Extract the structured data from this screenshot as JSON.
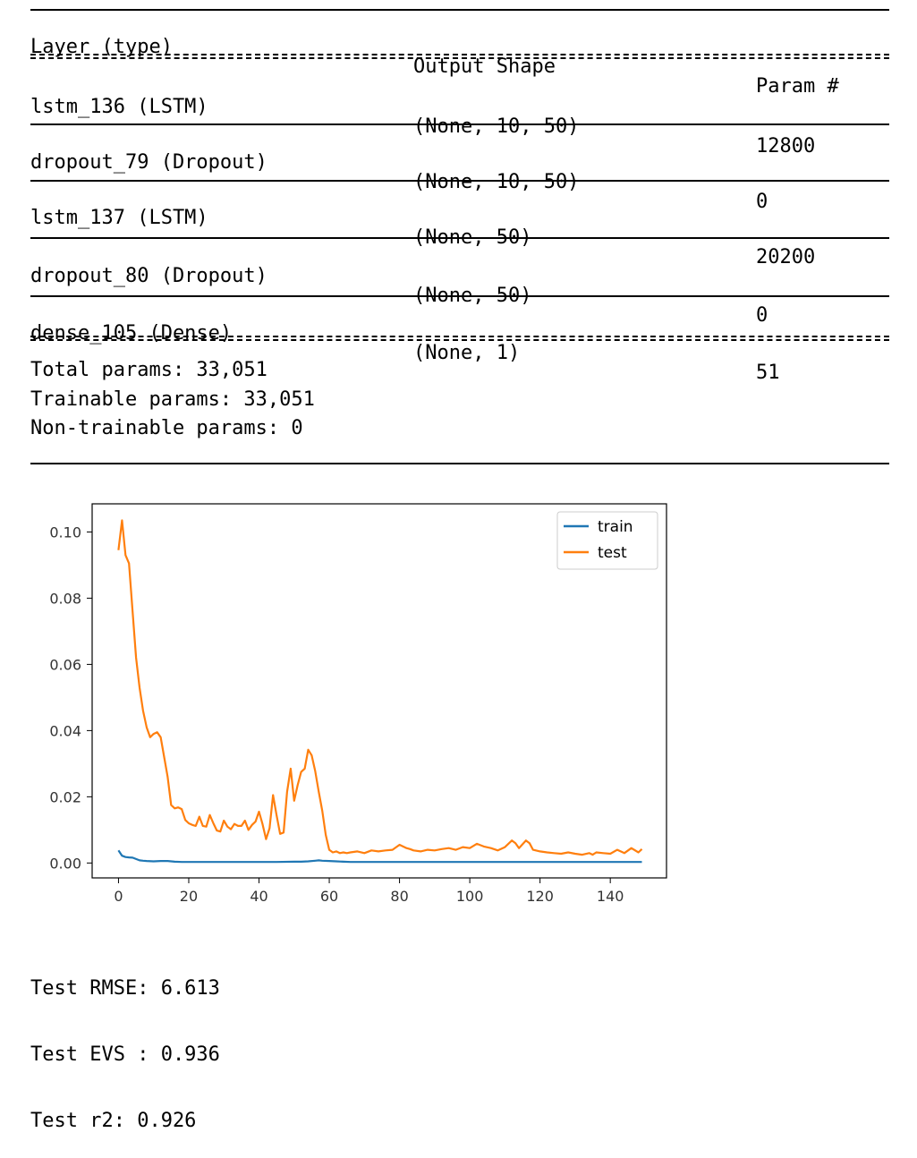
{
  "summary": {
    "headers": [
      "Layer (type)",
      "Output Shape",
      "Param #"
    ],
    "rows": [
      {
        "layer": "lstm_136 (LSTM)",
        "shape": "(None, 10, 50)",
        "params": "12800"
      },
      {
        "layer": "dropout_79 (Dropout)",
        "shape": "(None, 10, 50)",
        "params": "0"
      },
      {
        "layer": "lstm_137 (LSTM)",
        "shape": "(None, 50)",
        "params": "20200"
      },
      {
        "layer": "dropout_80 (Dropout)",
        "shape": "(None, 50)",
        "params": "0"
      },
      {
        "layer": "dense_105 (Dense)",
        "shape": "(None, 1)",
        "params": "51"
      }
    ],
    "total": "Total params: 33,051",
    "trainable": "Trainable params: 33,051",
    "non_trainable": "Non-trainable params: 0"
  },
  "chart_data": {
    "type": "line",
    "title": "",
    "xlabel": "",
    "ylabel": "",
    "xlim": [
      -7.5,
      156
    ],
    "ylim": [
      -0.0045,
      0.1085
    ],
    "x_ticks": [
      "0",
      "20",
      "40",
      "60",
      "80",
      "100",
      "120",
      "140"
    ],
    "y_ticks": [
      "0.00",
      "0.02",
      "0.04",
      "0.06",
      "0.08",
      "0.10"
    ],
    "legend": "top-right",
    "grid": false,
    "series": [
      {
        "name": "train",
        "color": "#1f77b4",
        "x": [
          0,
          1,
          2,
          3,
          4,
          5,
          6,
          7,
          8,
          10,
          12,
          14,
          16,
          18,
          20,
          25,
          30,
          35,
          40,
          45,
          50,
          52,
          54,
          56,
          57,
          58,
          60,
          62,
          64,
          66,
          70,
          80,
          90,
          100,
          110,
          120,
          130,
          140,
          149
        ],
        "y": [
          0.0038,
          0.0022,
          0.0018,
          0.0017,
          0.0016,
          0.0012,
          0.0008,
          0.0007,
          0.0006,
          0.0005,
          0.0006,
          0.0006,
          0.0004,
          0.0003,
          0.0003,
          0.0003,
          0.0003,
          0.0003,
          0.0003,
          0.0003,
          0.0004,
          0.0004,
          0.0005,
          0.0007,
          0.0008,
          0.0007,
          0.0006,
          0.0005,
          0.0004,
          0.0003,
          0.0003,
          0.0003,
          0.0003,
          0.0003,
          0.0003,
          0.0003,
          0.0003,
          0.0003,
          0.0003
        ]
      },
      {
        "name": "test",
        "color": "#ff7f0e",
        "x": [
          0,
          1,
          2,
          3,
          4,
          5,
          6,
          7,
          8,
          9,
          10,
          11,
          12,
          13,
          14,
          15,
          16,
          17,
          18,
          19,
          20,
          21,
          22,
          23,
          24,
          25,
          26,
          27,
          28,
          29,
          30,
          31,
          32,
          33,
          34,
          35,
          36,
          37,
          38,
          39,
          40,
          41,
          42,
          43,
          44,
          45,
          46,
          47,
          48,
          49,
          50,
          51,
          52,
          53,
          54,
          55,
          56,
          57,
          58,
          59,
          60,
          61,
          62,
          63,
          64,
          65,
          66,
          68,
          70,
          72,
          74,
          76,
          78,
          80,
          82,
          83,
          84,
          86,
          88,
          90,
          92,
          94,
          96,
          98,
          100,
          102,
          104,
          106,
          108,
          110,
          112,
          113,
          114,
          116,
          117,
          118,
          120,
          122,
          124,
          126,
          128,
          130,
          132,
          134,
          135,
          136,
          138,
          140,
          142,
          144,
          146,
          148,
          149
        ],
        "y": [
          0.0945,
          0.1035,
          0.093,
          0.0905,
          0.076,
          0.062,
          0.053,
          0.046,
          0.041,
          0.038,
          0.039,
          0.0395,
          0.038,
          0.032,
          0.026,
          0.0175,
          0.0165,
          0.0168,
          0.0163,
          0.013,
          0.012,
          0.0115,
          0.0112,
          0.014,
          0.0112,
          0.011,
          0.0145,
          0.012,
          0.0098,
          0.0095,
          0.0128,
          0.011,
          0.0102,
          0.0118,
          0.0112,
          0.0112,
          0.0128,
          0.01,
          0.0115,
          0.0125,
          0.0155,
          0.0118,
          0.0072,
          0.0105,
          0.0205,
          0.0145,
          0.0088,
          0.0092,
          0.0215,
          0.0285,
          0.0188,
          0.0235,
          0.0275,
          0.0285,
          0.0342,
          0.0325,
          0.0278,
          0.0215,
          0.0158,
          0.0085,
          0.004,
          0.0032,
          0.0035,
          0.003,
          0.0032,
          0.003,
          0.0032,
          0.0035,
          0.003,
          0.0038,
          0.0035,
          0.0038,
          0.004,
          0.0055,
          0.0045,
          0.0042,
          0.0038,
          0.0035,
          0.004,
          0.0038,
          0.0042,
          0.0045,
          0.004,
          0.0048,
          0.0045,
          0.0058,
          0.005,
          0.0045,
          0.0038,
          0.0048,
          0.0068,
          0.006,
          0.0045,
          0.0068,
          0.006,
          0.004,
          0.0035,
          0.0032,
          0.003,
          0.0028,
          0.0032,
          0.0028,
          0.0025,
          0.003,
          0.0025,
          0.0032,
          0.003,
          0.0028,
          0.004,
          0.003,
          0.0045,
          0.0032,
          0.0042
        ]
      }
    ]
  },
  "metrics": {
    "rmse": "Test RMSE: 6.613",
    "evs": "Test EVS : 0.936",
    "r2": "Test r2: 0.926"
  }
}
